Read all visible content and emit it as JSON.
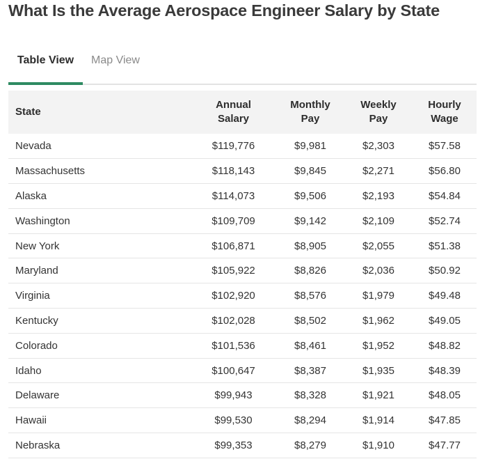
{
  "page": {
    "title": "What Is the Average Aerospace Engineer Salary by State"
  },
  "tabs": [
    {
      "label": "Table View",
      "active": true
    },
    {
      "label": "Map View",
      "active": false
    }
  ],
  "colors": {
    "active_tab_underline": "#2e8a62",
    "header_background": "#f3f3f3"
  },
  "table": {
    "headers": {
      "state": "State",
      "annual": [
        "Annual",
        "Salary"
      ],
      "monthly": [
        "Monthly",
        "Pay"
      ],
      "weekly": [
        "Weekly",
        "Pay"
      ],
      "hourly": [
        "Hourly",
        "Wage"
      ]
    },
    "rows": [
      {
        "state": "Nevada",
        "annual": "$119,776",
        "monthly": "$9,981",
        "weekly": "$2,303",
        "hourly": "$57.58"
      },
      {
        "state": "Massachusetts",
        "annual": "$118,143",
        "monthly": "$9,845",
        "weekly": "$2,271",
        "hourly": "$56.80"
      },
      {
        "state": "Alaska",
        "annual": "$114,073",
        "monthly": "$9,506",
        "weekly": "$2,193",
        "hourly": "$54.84"
      },
      {
        "state": "Washington",
        "annual": "$109,709",
        "monthly": "$9,142",
        "weekly": "$2,109",
        "hourly": "$52.74"
      },
      {
        "state": "New York",
        "annual": "$106,871",
        "monthly": "$8,905",
        "weekly": "$2,055",
        "hourly": "$51.38"
      },
      {
        "state": "Maryland",
        "annual": "$105,922",
        "monthly": "$8,826",
        "weekly": "$2,036",
        "hourly": "$50.92"
      },
      {
        "state": "Virginia",
        "annual": "$102,920",
        "monthly": "$8,576",
        "weekly": "$1,979",
        "hourly": "$49.48"
      },
      {
        "state": "Kentucky",
        "annual": "$102,028",
        "monthly": "$8,502",
        "weekly": "$1,962",
        "hourly": "$49.05"
      },
      {
        "state": "Colorado",
        "annual": "$101,536",
        "monthly": "$8,461",
        "weekly": "$1,952",
        "hourly": "$48.82"
      },
      {
        "state": "Idaho",
        "annual": "$100,647",
        "monthly": "$8,387",
        "weekly": "$1,935",
        "hourly": "$48.39"
      },
      {
        "state": "Delaware",
        "annual": "$99,943",
        "monthly": "$8,328",
        "weekly": "$1,921",
        "hourly": "$48.05"
      },
      {
        "state": "Hawaii",
        "annual": "$99,530",
        "monthly": "$8,294",
        "weekly": "$1,914",
        "hourly": "$47.85"
      },
      {
        "state": "Nebraska",
        "annual": "$99,353",
        "monthly": "$8,279",
        "weekly": "$1,910",
        "hourly": "$47.77"
      }
    ]
  }
}
